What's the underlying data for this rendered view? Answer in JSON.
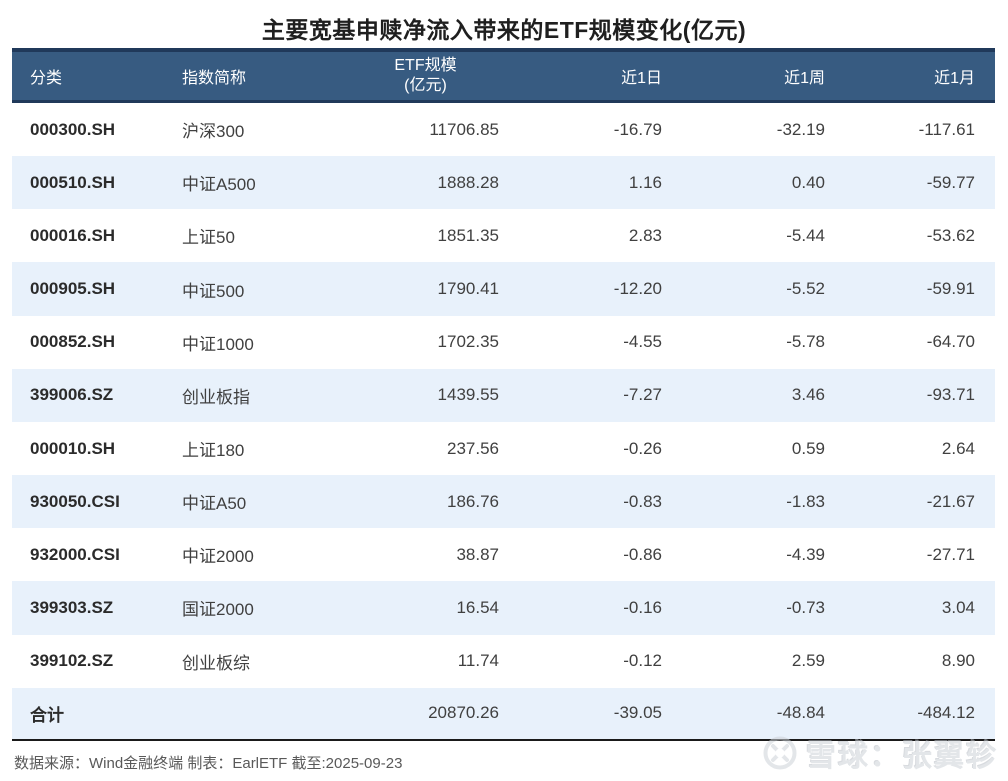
{
  "title": "主要宽基申赎净流入带来的ETF规模变化(亿元)",
  "table": {
    "headers": {
      "category": "分类",
      "index_name": "指数简称",
      "etf_scale_line1": "ETF规模",
      "etf_scale_line2": "(亿元)",
      "day1": "近1日",
      "week1": "近1周",
      "month1": "近1月"
    },
    "rows": [
      {
        "code": "000300.SH",
        "name": "沪深300",
        "scale": "11706.85",
        "d1": "-16.79",
        "w1": "-32.19",
        "m1": "-117.61"
      },
      {
        "code": "000510.SH",
        "name": "中证A500",
        "scale": "1888.28",
        "d1": "1.16",
        "w1": "0.40",
        "m1": "-59.77"
      },
      {
        "code": "000016.SH",
        "name": "上证50",
        "scale": "1851.35",
        "d1": "2.83",
        "w1": "-5.44",
        "m1": "-53.62"
      },
      {
        "code": "000905.SH",
        "name": "中证500",
        "scale": "1790.41",
        "d1": "-12.20",
        "w1": "-5.52",
        "m1": "-59.91"
      },
      {
        "code": "000852.SH",
        "name": "中证1000",
        "scale": "1702.35",
        "d1": "-4.55",
        "w1": "-5.78",
        "m1": "-64.70"
      },
      {
        "code": "399006.SZ",
        "name": "创业板指",
        "scale": "1439.55",
        "d1": "-7.27",
        "w1": "3.46",
        "m1": "-93.71"
      },
      {
        "code": "000010.SH",
        "name": "上证180",
        "scale": "237.56",
        "d1": "-0.26",
        "w1": "0.59",
        "m1": "2.64"
      },
      {
        "code": "930050.CSI",
        "name": "中证A50",
        "scale": "186.76",
        "d1": "-0.83",
        "w1": "-1.83",
        "m1": "-21.67"
      },
      {
        "code": "932000.CSI",
        "name": "中证2000",
        "scale": "38.87",
        "d1": "-0.86",
        "w1": "-4.39",
        "m1": "-27.71"
      },
      {
        "code": "399303.SZ",
        "name": "国证2000",
        "scale": "16.54",
        "d1": "-0.16",
        "w1": "-0.73",
        "m1": "3.04"
      },
      {
        "code": "399102.SZ",
        "name": "创业板综",
        "scale": "11.74",
        "d1": "-0.12",
        "w1": "2.59",
        "m1": "8.90"
      }
    ],
    "total": {
      "label": "合计",
      "scale": "20870.26",
      "d1": "-39.05",
      "w1": "-48.84",
      "m1": "-484.12"
    }
  },
  "footer": {
    "source": "数据来源：Wind金融终端 制表：EarlETF 截至:2025-09-23"
  },
  "watermark": {
    "icon": "xueqiu-logo",
    "text": "雪球：张翼轸"
  },
  "colors": {
    "header_bg": "#375b81",
    "header_border": "#20395a",
    "stripe_bg": "#e8f1fb",
    "table_bottom_border": "#1a1a1a",
    "title_text": "#1f1f1f",
    "cell_text": "#404040",
    "footer_text": "#595959"
  },
  "chart_data": {
    "type": "table",
    "title": "主要宽基申赎净流入带来的ETF规模变化(亿元)",
    "columns": [
      "分类",
      "指数简称",
      "ETF规模(亿元)",
      "近1日",
      "近1周",
      "近1月"
    ],
    "rows": [
      [
        "000300.SH",
        "沪深300",
        11706.85,
        -16.79,
        -32.19,
        -117.61
      ],
      [
        "000510.SH",
        "中证A500",
        1888.28,
        1.16,
        0.4,
        -59.77
      ],
      [
        "000016.SH",
        "上证50",
        1851.35,
        2.83,
        -5.44,
        -53.62
      ],
      [
        "000905.SH",
        "中证500",
        1790.41,
        -12.2,
        -5.52,
        -59.91
      ],
      [
        "000852.SH",
        "中证1000",
        1702.35,
        -4.55,
        -5.78,
        -64.7
      ],
      [
        "399006.SZ",
        "创业板指",
        1439.55,
        -7.27,
        3.46,
        -93.71
      ],
      [
        "000010.SH",
        "上证180",
        237.56,
        -0.26,
        0.59,
        2.64
      ],
      [
        "930050.CSI",
        "中证A50",
        186.76,
        -0.83,
        -1.83,
        -21.67
      ],
      [
        "932000.CSI",
        "中证2000",
        38.87,
        -0.86,
        -4.39,
        -27.71
      ],
      [
        "399303.SZ",
        "国证2000",
        16.54,
        -0.16,
        -0.73,
        3.04
      ],
      [
        "399102.SZ",
        "创业板综",
        11.74,
        -0.12,
        2.59,
        8.9
      ],
      [
        "合计",
        "",
        20870.26,
        -39.05,
        -48.84,
        -484.12
      ]
    ]
  }
}
